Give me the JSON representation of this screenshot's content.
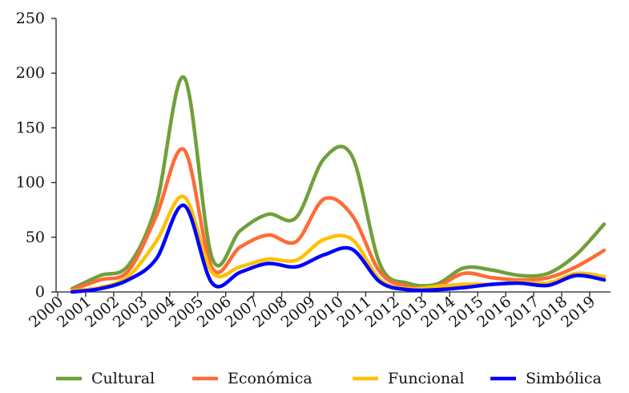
{
  "chart_data": {
    "type": "line",
    "title": "",
    "xlabel": "",
    "ylabel": "",
    "x": [
      "2000",
      "2001",
      "2002",
      "2003",
      "2004",
      "2005",
      "2006",
      "2007",
      "2008",
      "2009",
      "2010",
      "2011",
      "2012",
      "2013",
      "2014",
      "2015",
      "2016",
      "2017",
      "2018",
      "2019"
    ],
    "ylim": [
      0,
      250
    ],
    "yticks": [
      0,
      50,
      100,
      150,
      200,
      250
    ],
    "grid": false,
    "legend_position": "bottom",
    "series": [
      {
        "name": "Cultural",
        "color": "#70A03A",
        "values": [
          3,
          15,
          24,
          79,
          196,
          31,
          56,
          71,
          68,
          122,
          124,
          25,
          8,
          7,
          22,
          20,
          15,
          17,
          34,
          62
        ]
      },
      {
        "name": "Económica",
        "color": "#FF6B35",
        "values": [
          2,
          11,
          19,
          69,
          130,
          22,
          41,
          52,
          46,
          85,
          70,
          18,
          5,
          5,
          17,
          13,
          11,
          13,
          23,
          38
        ]
      },
      {
        "name": "Funcional",
        "color": "#FFC000",
        "values": [
          1,
          4,
          14,
          46,
          87,
          18,
          23,
          30,
          29,
          48,
          48,
          11,
          3,
          5,
          7,
          7,
          9,
          8,
          17,
          14
        ]
      },
      {
        "name": "Simbólica",
        "color": "#0000FF",
        "values": [
          0,
          3,
          11,
          30,
          79,
          8,
          18,
          26,
          23,
          34,
          39,
          9,
          2,
          2,
          4,
          7,
          8,
          6,
          15,
          11
        ]
      }
    ]
  }
}
